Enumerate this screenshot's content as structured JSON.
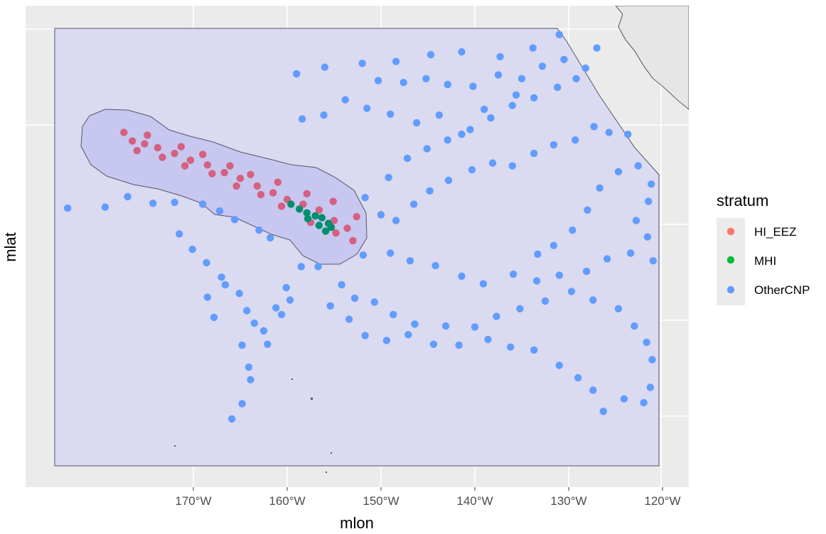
{
  "chart_data": {
    "type": "scatter",
    "xlabel": "mlon",
    "ylabel": "mlat",
    "x_ticks": [
      "170°W",
      "160°W",
      "150°W",
      "140°W",
      "130°W",
      "120°W"
    ],
    "x_tick_values": [
      -170,
      -160,
      -150,
      -140,
      -130,
      -120
    ],
    "xlim": [
      -182.3,
      -116.7
    ],
    "legend": {
      "title": "stratum",
      "placement": "right",
      "entries": [
        {
          "label": "HI_EEZ",
          "color": "#F8766D"
        },
        {
          "label": "MHI",
          "color": "#00BA38"
        },
        {
          "label": "OtherCNP",
          "color": "#619CFF"
        }
      ]
    },
    "grid": true,
    "series": [
      {
        "name": "HI_EEZ",
        "color": "#D5607F",
        "values": [
          [
            -176.5,
            28.7
          ],
          [
            -175.2,
            28.4
          ],
          [
            -173.8,
            28.0
          ],
          [
            -172.0,
            27.4
          ],
          [
            -170.3,
            26.7
          ],
          [
            -168.5,
            26.2
          ],
          [
            -166.7,
            25.4
          ],
          [
            -165.0,
            24.8
          ],
          [
            -163.2,
            24.0
          ],
          [
            -161.5,
            23.3
          ],
          [
            -160.0,
            22.6
          ],
          [
            -158.3,
            22.1
          ],
          [
            -156.6,
            21.5
          ],
          [
            -155.0,
            20.4
          ],
          [
            -153.6,
            19.6
          ],
          [
            -177.4,
            29.6
          ],
          [
            -174.9,
            29.3
          ],
          [
            -171.3,
            28.1
          ],
          [
            -169.0,
            27.3
          ],
          [
            -166.1,
            26.1
          ],
          [
            -163.9,
            25.2
          ],
          [
            -161.0,
            24.4
          ],
          [
            -157.9,
            23.2
          ],
          [
            -155.1,
            22.4
          ],
          [
            -152.6,
            20.8
          ],
          [
            -176.0,
            27.7
          ],
          [
            -173.3,
            27.0
          ],
          [
            -170.9,
            26.1
          ],
          [
            -168.0,
            25.3
          ],
          [
            -165.4,
            24.0
          ],
          [
            -162.8,
            23.1
          ],
          [
            -160.6,
            21.9
          ],
          [
            -157.5,
            20.2
          ],
          [
            -154.8,
            19.1
          ],
          [
            -153.0,
            18.3
          ]
        ]
      },
      {
        "name": "MHI",
        "color": "#008E6D",
        "values": [
          [
            -159.6,
            22.1
          ],
          [
            -158.7,
            21.6
          ],
          [
            -157.9,
            21.2
          ],
          [
            -157.0,
            20.9
          ],
          [
            -156.3,
            20.7
          ],
          [
            -155.6,
            20.1
          ],
          [
            -155.3,
            19.7
          ],
          [
            -155.9,
            19.3
          ],
          [
            -156.6,
            19.9
          ],
          [
            -157.8,
            20.6
          ]
        ]
      },
      {
        "name": "OtherCNP",
        "color": "#619CFF",
        "values": [
          [
            -183.4,
            21.7
          ],
          [
            -179.4,
            21.8
          ],
          [
            -177.0,
            22.9
          ],
          [
            -174.3,
            22.2
          ],
          [
            -172.0,
            22.3
          ],
          [
            -169.0,
            22.1
          ],
          [
            -167.2,
            21.4
          ],
          [
            -165.6,
            20.5
          ],
          [
            -163.0,
            19.4
          ],
          [
            -161.8,
            18.6
          ],
          [
            -171.5,
            19.0
          ],
          [
            -170.1,
            17.4
          ],
          [
            -168.6,
            16.0
          ],
          [
            -167.0,
            14.5
          ],
          [
            -165.1,
            12.8
          ],
          [
            -164.3,
            11.0
          ],
          [
            -163.5,
            9.7
          ],
          [
            -162.5,
            8.9
          ],
          [
            -162.1,
            7.5
          ],
          [
            -161.2,
            11.3
          ],
          [
            -164.8,
            7.4
          ],
          [
            -164.1,
            5.1
          ],
          [
            -163.9,
            3.8
          ],
          [
            -164.8,
            1.3
          ],
          [
            -165.9,
            -0.3
          ],
          [
            -167.8,
            10.3
          ],
          [
            -168.5,
            12.4
          ],
          [
            -166.6,
            13.7
          ],
          [
            -160.1,
            13.4
          ],
          [
            -159.7,
            12.1
          ],
          [
            -160.6,
            10.6
          ],
          [
            -158.5,
            15.6
          ],
          [
            -156.7,
            15.6
          ],
          [
            -154.2,
            13.7
          ],
          [
            -152.8,
            12.3
          ],
          [
            -150.7,
            11.9
          ],
          [
            -148.7,
            10.6
          ],
          [
            -146.4,
            9.6
          ],
          [
            -143.1,
            9.4
          ],
          [
            -140.0,
            9.3
          ],
          [
            -137.7,
            10.4
          ],
          [
            -135.2,
            11.2
          ],
          [
            -132.5,
            12.0
          ],
          [
            -129.7,
            13.0
          ],
          [
            -127.4,
            12.1
          ],
          [
            -124.7,
            11.2
          ],
          [
            -123.0,
            9.4
          ],
          [
            -121.7,
            7.7
          ],
          [
            -121.1,
            5.9
          ],
          [
            -121.3,
            3.0
          ],
          [
            -122.0,
            1.4
          ],
          [
            -124.1,
            1.8
          ],
          [
            -126.3,
            0.5
          ],
          [
            -127.4,
            2.7
          ],
          [
            -129.0,
            4.0
          ],
          [
            -131.0,
            5.3
          ],
          [
            -133.7,
            6.9
          ],
          [
            -136.2,
            7.2
          ],
          [
            -138.6,
            8.0
          ],
          [
            -141.7,
            7.4
          ],
          [
            -144.4,
            7.5
          ],
          [
            -147.1,
            8.5
          ],
          [
            -149.4,
            7.9
          ],
          [
            -151.7,
            8.4
          ],
          [
            -153.4,
            10.1
          ],
          [
            -155.4,
            11.5
          ],
          [
            -151.9,
            16.8
          ],
          [
            -149.0,
            17.0
          ],
          [
            -146.9,
            16.2
          ],
          [
            -144.2,
            15.7
          ],
          [
            -141.4,
            14.6
          ],
          [
            -139.1,
            13.8
          ],
          [
            -135.9,
            14.8
          ],
          [
            -133.4,
            14.1
          ],
          [
            -131.0,
            14.7
          ],
          [
            -128.1,
            15.1
          ],
          [
            -125.9,
            16.4
          ],
          [
            -123.4,
            17.0
          ],
          [
            -121.0,
            16.2
          ],
          [
            -121.6,
            18.7
          ],
          [
            -122.8,
            20.4
          ],
          [
            -121.5,
            22.4
          ],
          [
            -121.2,
            24.2
          ],
          [
            -122.6,
            26.1
          ],
          [
            -124.7,
            25.5
          ],
          [
            -126.7,
            23.8
          ],
          [
            -128.0,
            21.5
          ],
          [
            -129.6,
            19.4
          ],
          [
            -131.6,
            17.8
          ],
          [
            -133.3,
            16.9
          ],
          [
            -149.2,
            24.9
          ],
          [
            -147.2,
            26.9
          ],
          [
            -145.1,
            27.9
          ],
          [
            -142.9,
            28.8
          ],
          [
            -140.5,
            29.9
          ],
          [
            -138.3,
            31.1
          ],
          [
            -136.0,
            32.4
          ],
          [
            -133.7,
            33.2
          ],
          [
            -131.2,
            34.3
          ],
          [
            -129.2,
            35.2
          ],
          [
            -151.7,
            22.8
          ],
          [
            -150.0,
            21.0
          ],
          [
            -148.4,
            20.4
          ],
          [
            -146.5,
            22.1
          ],
          [
            -144.8,
            23.5
          ],
          [
            -142.8,
            24.6
          ],
          [
            -140.3,
            25.7
          ],
          [
            -138.1,
            26.4
          ],
          [
            -136.0,
            26.1
          ],
          [
            -133.7,
            27.4
          ],
          [
            -131.6,
            28.3
          ],
          [
            -129.3,
            28.8
          ],
          [
            -127.3,
            30.2
          ],
          [
            -125.7,
            29.6
          ],
          [
            -123.7,
            29.4
          ],
          [
            -150.3,
            35.0
          ],
          [
            -147.6,
            34.8
          ],
          [
            -145.2,
            35.2
          ],
          [
            -142.9,
            34.6
          ],
          [
            -140.2,
            34.4
          ],
          [
            -137.5,
            35.6
          ],
          [
            -135.0,
            35.2
          ],
          [
            -132.8,
            36.5
          ],
          [
            -130.5,
            37.2
          ],
          [
            -128.2,
            36.3
          ],
          [
            -158.4,
            31.0
          ],
          [
            -156.1,
            31.4
          ],
          [
            -153.8,
            33.0
          ],
          [
            -151.5,
            32.1
          ],
          [
            -149.0,
            31.5
          ],
          [
            -146.2,
            30.6
          ],
          [
            -143.8,
            31.4
          ],
          [
            -141.4,
            29.4
          ],
          [
            -139.0,
            32.0
          ],
          [
            -135.6,
            33.5
          ],
          [
            -159.0,
            35.7
          ],
          [
            -156.0,
            36.4
          ],
          [
            -152.0,
            36.8
          ],
          [
            -148.4,
            37.0
          ],
          [
            -144.7,
            37.7
          ],
          [
            -141.4,
            38.0
          ],
          [
            -137.3,
            37.5
          ],
          [
            -133.8,
            38.4
          ],
          [
            -131.0,
            39.8
          ],
          [
            -127.0,
            38.4
          ]
        ]
      }
    ]
  }
}
